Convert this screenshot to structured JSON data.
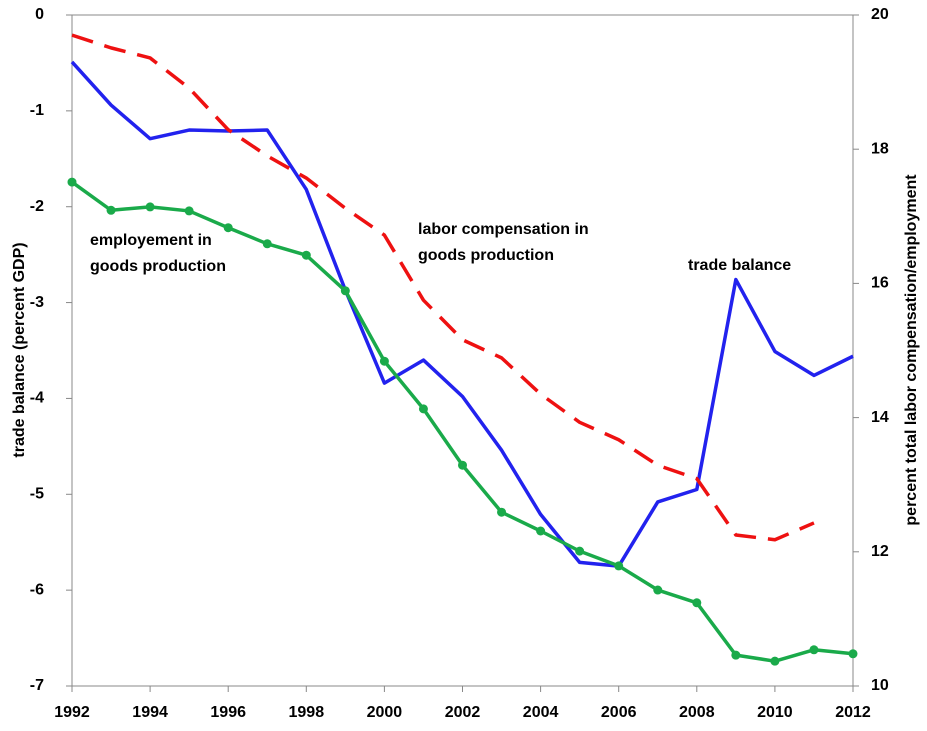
{
  "chart_data": {
    "type": "line",
    "x": [
      1992,
      1993,
      1994,
      1995,
      1996,
      1997,
      1998,
      1999,
      2000,
      2001,
      2002,
      2003,
      2004,
      2005,
      2006,
      2007,
      2008,
      2009,
      2010,
      2011,
      2012
    ],
    "xlim": [
      1992,
      2012
    ],
    "xticks": [
      1992,
      1994,
      1996,
      1998,
      2000,
      2002,
      2004,
      2006,
      2008,
      2010,
      2012
    ],
    "ylim": [
      -7,
      0
    ],
    "yticks": [
      -7,
      -6,
      -5,
      -4,
      -3,
      -2,
      -1,
      0
    ],
    "y2lim": [
      10,
      20
    ],
    "y2ticks": [
      10,
      12,
      14,
      16,
      18,
      20
    ],
    "y_label": "trade balance (percent GDP)",
    "y2_label": "percent total labor compensation/employment",
    "series": [
      {
        "color": "#2222ee",
        "linestyle": "solid",
        "values": [
          -0.49,
          -0.94,
          -1.29,
          -1.2,
          -1.21,
          -1.2,
          -1.82,
          -2.87,
          -3.84,
          -3.6,
          -3.98,
          -4.54,
          -5.21,
          -5.71,
          -5.75,
          -5.08,
          -4.95,
          -2.76,
          -3.51,
          -3.76,
          -3.56
        ]
      },
      {
        "color": "#ee1111",
        "linestyle": "dashed",
        "axis": "y2",
        "values": [
          19.7,
          19.51,
          19.36,
          18.91,
          18.29,
          17.9,
          17.57,
          17.12,
          16.72,
          15.75,
          15.16,
          14.89,
          14.35,
          13.93,
          13.67,
          13.29,
          13.09,
          12.25,
          12.18,
          12.43,
          null
        ]
      },
      {
        "color": "#1aaa4a",
        "linestyle": "solid",
        "marker": "circle",
        "axis": "y2",
        "values": [
          17.51,
          17.09,
          17.14,
          17.08,
          16.83,
          16.59,
          16.42,
          15.89,
          14.84,
          14.13,
          13.29,
          12.59,
          12.31,
          12.01,
          11.79,
          11.43,
          11.24,
          10.46,
          10.37,
          10.54,
          10.48
        ]
      }
    ],
    "annotations": [
      [
        "employement in",
        "goods production"
      ],
      [
        "labor compensation in",
        "goods production"
      ],
      [
        "trade balance"
      ]
    ]
  }
}
